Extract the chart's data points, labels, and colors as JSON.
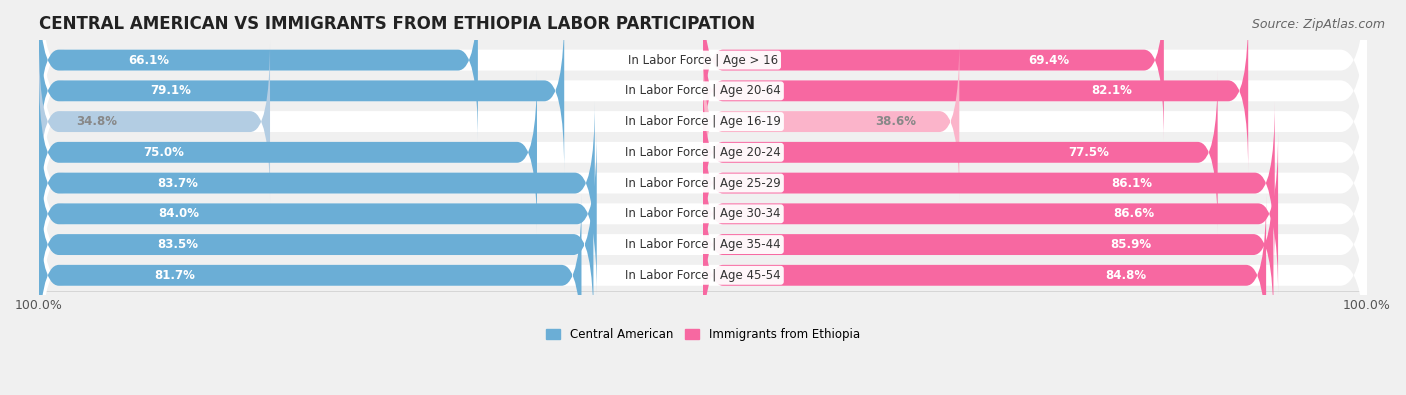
{
  "title": "CENTRAL AMERICAN VS IMMIGRANTS FROM ETHIOPIA LABOR PARTICIPATION",
  "source": "Source: ZipAtlas.com",
  "categories": [
    "In Labor Force | Age > 16",
    "In Labor Force | Age 20-64",
    "In Labor Force | Age 16-19",
    "In Labor Force | Age 20-24",
    "In Labor Force | Age 25-29",
    "In Labor Force | Age 30-34",
    "In Labor Force | Age 35-44",
    "In Labor Force | Age 45-54"
  ],
  "central_american": [
    66.1,
    79.1,
    34.8,
    75.0,
    83.7,
    84.0,
    83.5,
    81.7
  ],
  "ethiopia": [
    69.4,
    82.1,
    38.6,
    77.5,
    86.1,
    86.6,
    85.9,
    84.8
  ],
  "blue_color": "#6baed6",
  "blue_light_color": "#b3cde3",
  "pink_color": "#f768a1",
  "pink_light_color": "#fbb4ca",
  "bg_color": "#f0f0f0",
  "row_bg_color": "#e0e0e0",
  "max_val": 100.0,
  "bar_height": 0.68,
  "title_fontsize": 12,
  "label_fontsize": 8.5,
  "val_fontsize": 8.5,
  "tick_fontsize": 9,
  "source_fontsize": 9,
  "light_rows": [
    "In Labor Force | Age 16-19"
  ]
}
